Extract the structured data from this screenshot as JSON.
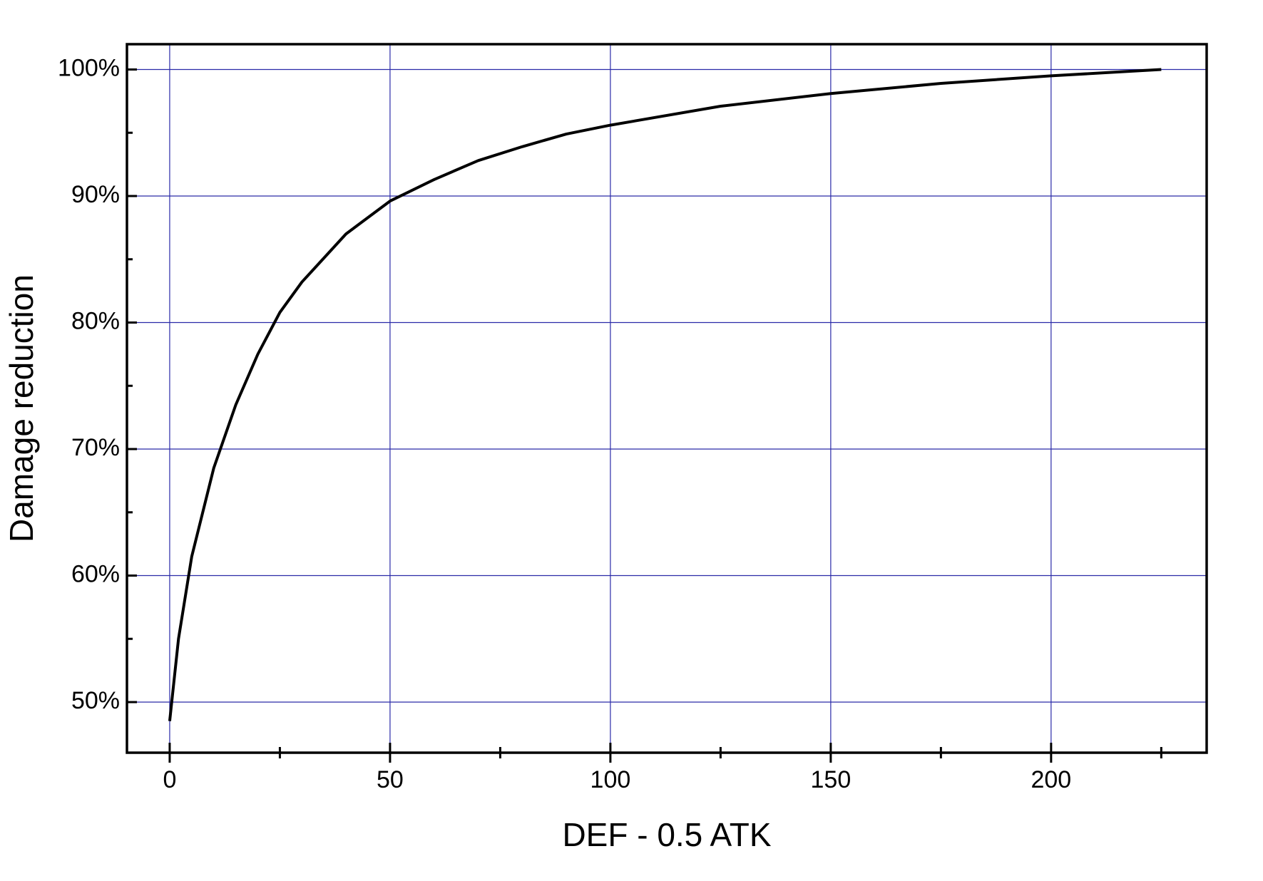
{
  "chart_data": {
    "type": "line",
    "x_label": "DEF - 0.5 ATK",
    "y_label": "Damage reduction",
    "series": [
      {
        "color": "#000000",
        "x": [
          0,
          2,
          5,
          10,
          15,
          20,
          25,
          30,
          40,
          50,
          60,
          70,
          80,
          90,
          100,
          125,
          150,
          175,
          200,
          225
        ],
        "values": [
          48.5,
          55,
          61.5,
          68.5,
          73.5,
          77.5,
          80.8,
          83.2,
          87,
          89.6,
          91.3,
          92.8,
          93.9,
          94.9,
          95.6,
          97.1,
          98.1,
          98.9,
          99.5,
          100
        ]
      }
    ],
    "xlim": [
      -9.7,
      235.3
    ],
    "ylim": [
      46,
      102
    ],
    "xticks": [
      0,
      50,
      100,
      150,
      200
    ],
    "yticks": [
      {
        "value": 50,
        "label": "50%"
      },
      {
        "value": 60,
        "label": "60%"
      },
      {
        "value": 70,
        "label": "70%"
      },
      {
        "value": 80,
        "label": "80%"
      },
      {
        "value": 90,
        "label": "90%"
      },
      {
        "value": 100,
        "label": "100%"
      }
    ],
    "xminorticks": [
      25,
      75,
      125,
      175,
      225
    ],
    "yminorticks": [
      55,
      65,
      75,
      85,
      95
    ],
    "grid": true,
    "grid_color": "#2a2aa8"
  }
}
